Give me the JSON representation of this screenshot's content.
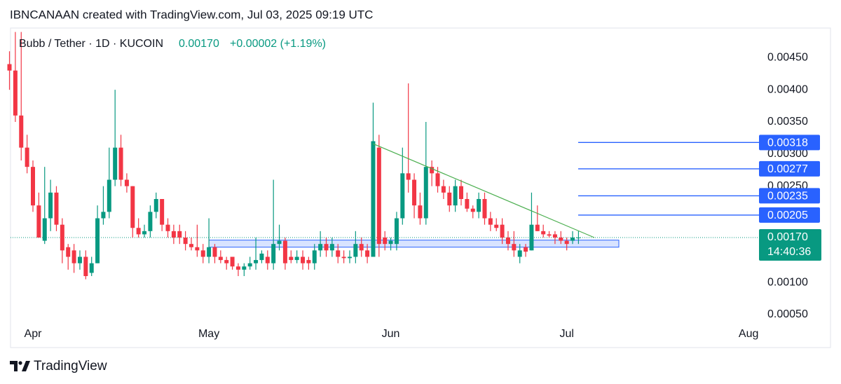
{
  "header": "IBNCANAAN created with TradingView.com, Jul 03, 2025 09:19 UTC",
  "footer": "TradingView",
  "chart_data": {
    "type": "candlestick",
    "title": "Bubb / Tether · 1D · KUCOIN",
    "last": {
      "value": 0.0017,
      "label": "0.00170"
    },
    "change": "+0.00002 (+1.19%)",
    "countdown": "14:40:36",
    "up_color": "#089981",
    "down_color": "#f23645",
    "ylim": [
      0.00038,
      0.00494
    ],
    "yticks": [
      {
        "value": 0.0005,
        "label": "0.00050"
      },
      {
        "value": 0.001,
        "label": "0.00100"
      },
      {
        "value": 0.0025,
        "label": "0.00250"
      },
      {
        "value": 0.003,
        "label": "0.00300"
      },
      {
        "value": 0.0035,
        "label": "0.00350"
      },
      {
        "value": 0.004,
        "label": "0.00400"
      },
      {
        "value": 0.0045,
        "label": "0.00450"
      }
    ],
    "grid": false,
    "levels": [
      0.00318,
      0.00277,
      0.00235,
      0.00205
    ],
    "level_color": "#2962ff",
    "zone": {
      "values": [
        0.00155,
        0.00166
      ],
      "color": "#2962ff"
    },
    "trendline": {
      "values": [
        0.00316,
        0.0017
      ],
      "color": "#4caf50"
    },
    "categories": [
      null,
      null,
      null,
      null,
      "Apr",
      null,
      null,
      null,
      null,
      null,
      null,
      null,
      null,
      null,
      null,
      null,
      null,
      null,
      null,
      null,
      null,
      null,
      null,
      null,
      null,
      null,
      null,
      null,
      null,
      null,
      null,
      null,
      null,
      null,
      "May",
      null,
      null,
      null,
      null,
      null,
      null,
      null,
      null,
      null,
      null,
      null,
      null,
      null,
      null,
      null,
      null,
      null,
      null,
      null,
      null,
      null,
      null,
      null,
      null,
      null,
      null,
      null,
      null,
      null,
      null,
      "Jun",
      null,
      null,
      null,
      null,
      null,
      null,
      null,
      null,
      null,
      null,
      null,
      null,
      null,
      null,
      null,
      null,
      null,
      null,
      null,
      null,
      null,
      null,
      null,
      null,
      null,
      null,
      null,
      null,
      null,
      "Jul",
      null,
      null,
      null,
      null,
      null,
      null,
      null,
      null,
      null,
      null,
      null,
      null,
      null,
      null,
      null,
      null,
      null,
      null,
      null,
      null,
      null,
      null,
      null,
      null,
      null,
      null,
      null,
      null,
      null,
      null,
      "Aug"
    ],
    "open": [
      0.0044,
      0.0043,
      0.0036,
      0.0031,
      0.0028,
      0.0022,
      0.00165,
      0.002,
      0.0024,
      0.0019,
      0.00155,
      0.0015,
      0.0013,
      0.0014,
      0.00115,
      0.0013,
      0.002,
      0.0021,
      0.0026,
      0.0031,
      0.0026,
      0.0025,
      0.00185,
      0.00175,
      0.0018,
      0.0021,
      0.0023,
      0.0019,
      0.0018,
      0.0018,
      0.0017,
      0.0016,
      0.00155,
      0.0015,
      0.0014,
      0.00155,
      0.0014,
      0.00135,
      0.0014,
      0.00125,
      0.0012,
      0.00125,
      0.0013,
      0.00135,
      0.0014,
      0.0013,
      0.0016,
      0.00165,
      0.0014,
      0.00135,
      0.0014,
      0.00135,
      0.0013,
      0.0015,
      0.0016,
      0.0015,
      0.0015,
      0.0014,
      0.00138,
      0.0014,
      0.0016,
      0.0015,
      0.0014,
      0.0031,
      0.0017,
      0.0016,
      0.0016,
      0.002,
      0.0027,
      0.0026,
      0.0022,
      0.002,
      0.0028,
      0.0027,
      0.0025,
      0.0024,
      0.0022,
      0.0025,
      0.0023,
      0.00215,
      0.0021,
      0.0023,
      0.002,
      0.0019,
      0.0019,
      0.0017,
      0.0016,
      0.0014,
      0.00155,
      0.0015,
      0.0019,
      0.0018,
      0.00175,
      0.00175,
      0.0017,
      0.00165,
      0.00165,
      0.0017,
      null,
      null,
      null,
      null,
      null,
      null,
      null,
      null,
      null,
      null,
      null,
      null,
      null,
      null,
      null,
      null,
      null,
      null,
      null,
      null,
      null,
      null,
      null,
      null,
      null,
      null,
      null,
      null,
      null
    ],
    "high": [
      0.0046,
      0.0049,
      0.0049,
      0.0033,
      0.0029,
      0.0024,
      0.0028,
      0.0026,
      0.0025,
      0.002,
      0.0016,
      0.0016,
      0.0015,
      0.0015,
      0.0014,
      0.0022,
      0.0025,
      0.0031,
      0.004,
      0.0033,
      0.0027,
      0.0025,
      0.002,
      0.0019,
      0.0022,
      0.0024,
      0.0023,
      0.002,
      0.0019,
      0.0019,
      0.0018,
      0.0017,
      0.0019,
      0.0016,
      0.002,
      0.0016,
      0.0015,
      0.0014,
      0.0014,
      0.0013,
      0.0013,
      0.0014,
      0.0017,
      0.0015,
      0.0015,
      0.0026,
      0.0019,
      0.0017,
      0.0015,
      0.0015,
      0.0015,
      0.0014,
      0.0016,
      0.0018,
      0.0017,
      0.0017,
      0.0016,
      0.0015,
      0.0015,
      0.0018,
      0.0017,
      0.0016,
      0.0038,
      0.0033,
      0.0018,
      0.0017,
      0.0021,
      0.0031,
      0.0041,
      0.0027,
      0.0024,
      0.0035,
      0.0029,
      0.0028,
      0.0026,
      0.0025,
      0.0026,
      0.0026,
      0.0024,
      0.0022,
      0.0024,
      0.0024,
      0.0021,
      0.002,
      0.002,
      0.0018,
      0.0018,
      0.0016,
      0.0016,
      0.0024,
      0.0022,
      0.0019,
      0.0018,
      0.0018,
      0.0018,
      0.0017,
      0.0018,
      0.0018,
      null,
      null,
      null,
      null,
      null,
      null,
      null,
      null,
      null,
      null,
      null,
      null,
      null,
      null,
      null,
      null,
      null,
      null,
      null,
      null,
      null,
      null,
      null,
      null,
      null,
      null,
      null,
      null,
      null
    ],
    "low": [
      0.004,
      0.0035,
      0.0029,
      0.0027,
      0.0021,
      0.0017,
      0.0016,
      0.0018,
      0.0018,
      0.0013,
      0.0012,
      0.00115,
      0.0012,
      0.00105,
      0.0011,
      0.0013,
      0.0019,
      0.002,
      0.0025,
      0.0025,
      0.0024,
      0.0017,
      0.0017,
      0.0017,
      0.0017,
      0.002,
      0.0018,
      0.0017,
      0.0016,
      0.0016,
      0.0015,
      0.0015,
      0.0014,
      0.0013,
      0.0013,
      0.0013,
      0.0013,
      0.0012,
      0.0012,
      0.0011,
      0.0011,
      0.0012,
      0.0012,
      0.0013,
      0.0012,
      0.0012,
      0.0015,
      0.0012,
      0.0013,
      0.0013,
      0.0012,
      0.0012,
      0.0012,
      0.0014,
      0.0014,
      0.0014,
      0.0013,
      0.0013,
      0.0013,
      0.0013,
      0.0014,
      0.0013,
      0.0014,
      0.0014,
      0.0015,
      0.0015,
      0.0015,
      0.0019,
      0.0024,
      0.002,
      0.0019,
      0.0019,
      0.0025,
      0.0024,
      0.0023,
      0.0021,
      0.0021,
      0.0022,
      0.0021,
      0.002,
      0.002,
      0.0019,
      0.0018,
      0.0018,
      0.0016,
      0.0015,
      0.0014,
      0.0013,
      0.0014,
      0.0015,
      0.0018,
      0.0017,
      0.0017,
      0.0016,
      0.0016,
      0.0015,
      0.0016,
      0.0016,
      null,
      null,
      null,
      null,
      null,
      null,
      null,
      null,
      null,
      null,
      null,
      null,
      null,
      null,
      null,
      null,
      null,
      null,
      null,
      null,
      null,
      null,
      null,
      null,
      null,
      null,
      null,
      null,
      null
    ],
    "close": [
      0.0043,
      0.0036,
      0.0031,
      0.0028,
      0.0022,
      0.0017,
      0.002,
      0.0024,
      0.0019,
      0.0015,
      0.0014,
      0.0013,
      0.0014,
      0.0011,
      0.0013,
      0.002,
      0.0021,
      0.0026,
      0.0031,
      0.0026,
      0.0025,
      0.00185,
      0.00175,
      0.0018,
      0.0021,
      0.0023,
      0.0019,
      0.0018,
      0.0017,
      0.0017,
      0.0016,
      0.00155,
      0.0015,
      0.0014,
      0.00155,
      0.0014,
      0.00135,
      0.0013,
      0.00125,
      0.0012,
      0.00125,
      0.0013,
      0.00135,
      0.00145,
      0.0013,
      0.0016,
      0.00165,
      0.0013,
      0.00135,
      0.0014,
      0.0013,
      0.0013,
      0.0015,
      0.0016,
      0.0015,
      0.0016,
      0.0014,
      0.00138,
      0.0014,
      0.0016,
      0.0015,
      0.0014,
      0.0032,
      0.0016,
      0.0016,
      0.00165,
      0.002,
      0.0027,
      0.0026,
      0.0022,
      0.002,
      0.0028,
      0.0027,
      0.0025,
      0.0024,
      0.0022,
      0.0025,
      0.0023,
      0.00215,
      0.0021,
      0.0023,
      0.002,
      0.0019,
      0.00185,
      0.0017,
      0.0016,
      0.0015,
      0.0015,
      0.00148,
      0.0019,
      0.0018,
      0.00175,
      0.00173,
      0.0017,
      0.00165,
      0.0016,
      0.0017,
      0.0017,
      null,
      null,
      null,
      null,
      null,
      null,
      null,
      null,
      null,
      null,
      null,
      null,
      null,
      null,
      null,
      null,
      null,
      null,
      null,
      null,
      null,
      null,
      null,
      null,
      null,
      null,
      null,
      null,
      null
    ]
  }
}
